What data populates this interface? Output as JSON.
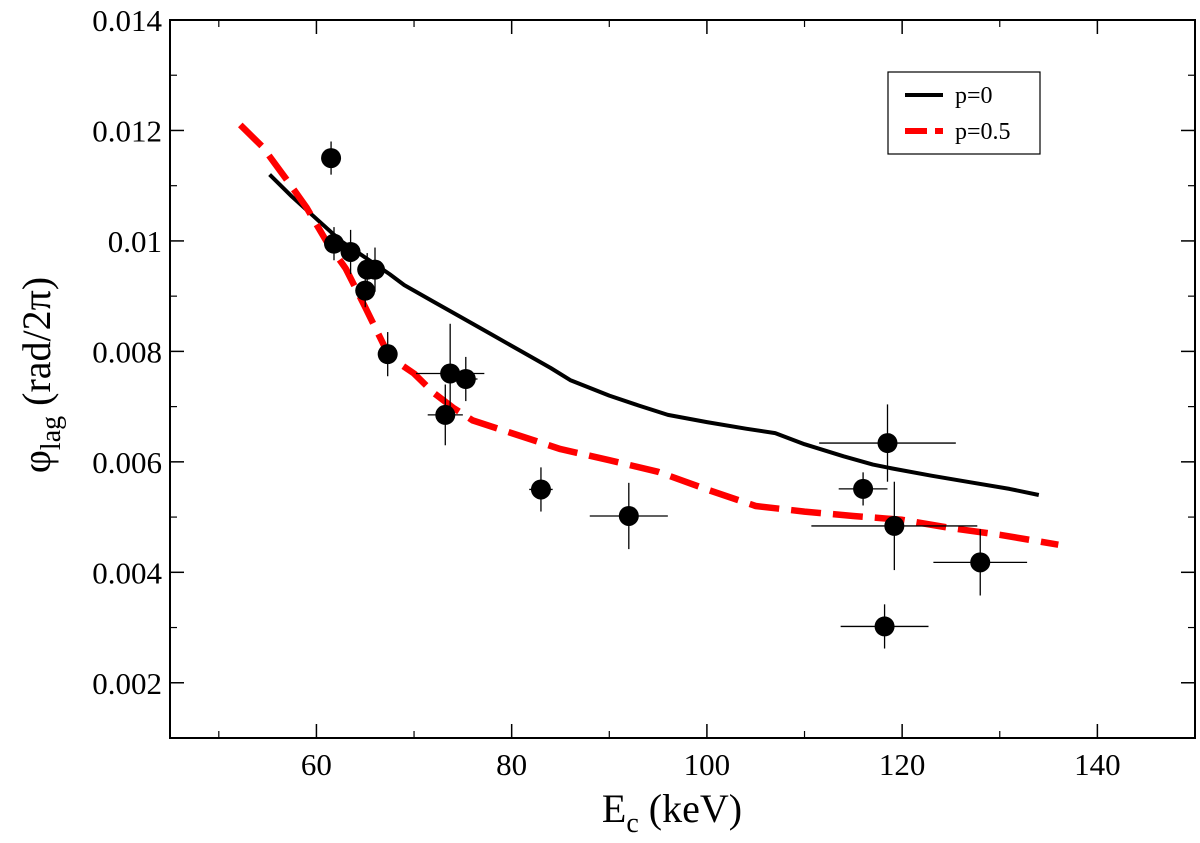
{
  "chart_data": {
    "type": "scatter",
    "xlabel": "E",
    "xlabel_sub": "c",
    "xlabel_unit": " (keV)",
    "ylabel": "φ",
    "ylabel_sub": "lag",
    "ylabel_unit": " (rad/2π)",
    "xlim": [
      45,
      150
    ],
    "ylim": [
      0.001,
      0.014
    ],
    "x_ticks": [
      60,
      80,
      100,
      120,
      140
    ],
    "x_tick_labels": [
      "60",
      "80",
      "100",
      "120",
      "140"
    ],
    "x_minor_ticks": [
      50,
      70,
      90,
      110,
      130
    ],
    "y_ticks": [
      0.002,
      0.004,
      0.006,
      0.008,
      0.01,
      0.012,
      0.014
    ],
    "y_tick_labels": [
      "0.002",
      "0.004",
      "0.006",
      "0.008",
      "0.01",
      "0.012",
      "0.014"
    ],
    "y_minor_ticks": [
      0.003,
      0.005,
      0.007,
      0.009,
      0.011,
      0.013
    ],
    "grid": false,
    "legend_position": "top-right",
    "points": [
      {
        "x": 61.5,
        "y": 0.0115,
        "xerr": 0.8,
        "yerr": 0.0003
      },
      {
        "x": 61.8,
        "y": 0.00995,
        "xerr": 1.0,
        "yerr": 0.0003
      },
      {
        "x": 63.5,
        "y": 0.0098,
        "xerr": 1.0,
        "yerr": 0.0004
      },
      {
        "x": 65.0,
        "y": 0.0091,
        "xerr": 1.0,
        "yerr": 0.0003
      },
      {
        "x": 65.2,
        "y": 0.00948,
        "xerr": 0.8,
        "yerr": 0.0003
      },
      {
        "x": 66.0,
        "y": 0.00948,
        "xerr": 0.8,
        "yerr": 0.0004
      },
      {
        "x": 67.3,
        "y": 0.00795,
        "xerr": 0.9,
        "yerr": 0.0004
      },
      {
        "x": 73.2,
        "y": 0.00685,
        "xerr": 1.8,
        "yerr": 0.00055
      },
      {
        "x": 73.7,
        "y": 0.0076,
        "xerr": 3.5,
        "yerr": 0.0009
      },
      {
        "x": 75.3,
        "y": 0.0075,
        "xerr": 1.2,
        "yerr": 0.0004
      },
      {
        "x": 83.0,
        "y": 0.0055,
        "xerr": 1.2,
        "yerr": 0.0004
      },
      {
        "x": 92.0,
        "y": 0.00502,
        "xerr": 4.0,
        "yerr": 0.0006
      },
      {
        "x": 116.0,
        "y": 0.00551,
        "xerr": 2.5,
        "yerr": 0.0003
      },
      {
        "x": 118.2,
        "y": 0.00302,
        "xerr": 4.5,
        "yerr": 0.0004
      },
      {
        "x": 118.5,
        "y": 0.00634,
        "xerr": 7.0,
        "yerr": 0.0007
      },
      {
        "x": 119.2,
        "y": 0.00484,
        "xerr": 8.5,
        "yerr": 0.0008
      },
      {
        "x": 128.0,
        "y": 0.00418,
        "xerr": 4.8,
        "yerr": 0.0006
      }
    ],
    "series": [
      {
        "name": "p=0",
        "color": "#000000",
        "style": "solid",
        "x": [
          55.2,
          57.5,
          60,
          62.5,
          65,
          67.5,
          69,
          72,
          75,
          78,
          81,
          84,
          86,
          90,
          93,
          96,
          100,
          104,
          107,
          110,
          114,
          117,
          119,
          123,
          127,
          131,
          134
        ],
        "y": [
          0.0112,
          0.0108,
          0.0104,
          0.01,
          0.0097,
          0.0094,
          0.0092,
          0.0089,
          0.0086,
          0.0083,
          0.008,
          0.0077,
          0.00748,
          0.0072,
          0.00702,
          0.00685,
          0.00672,
          0.0066,
          0.00652,
          0.00632,
          0.0061,
          0.00595,
          0.00588,
          0.00575,
          0.00563,
          0.00551,
          0.0054
        ]
      },
      {
        "name": "p=0.5",
        "color": "#ff0000",
        "style": "dashed",
        "x": [
          52.2,
          54.5,
          57,
          59,
          61,
          63,
          65,
          67.5,
          70,
          72,
          74,
          76,
          80,
          85,
          90,
          95,
          100,
          105,
          110,
          115,
          120,
          125,
          130,
          136
        ],
        "y": [
          0.0121,
          0.0117,
          0.0111,
          0.0106,
          0.01,
          0.0095,
          0.0088,
          0.0079,
          0.0076,
          0.00725,
          0.00698,
          0.00675,
          0.00652,
          0.00623,
          0.00603,
          0.00582,
          0.0055,
          0.0052,
          0.0051,
          0.00502,
          0.00495,
          0.0048,
          0.00468,
          0.0045
        ]
      }
    ]
  }
}
